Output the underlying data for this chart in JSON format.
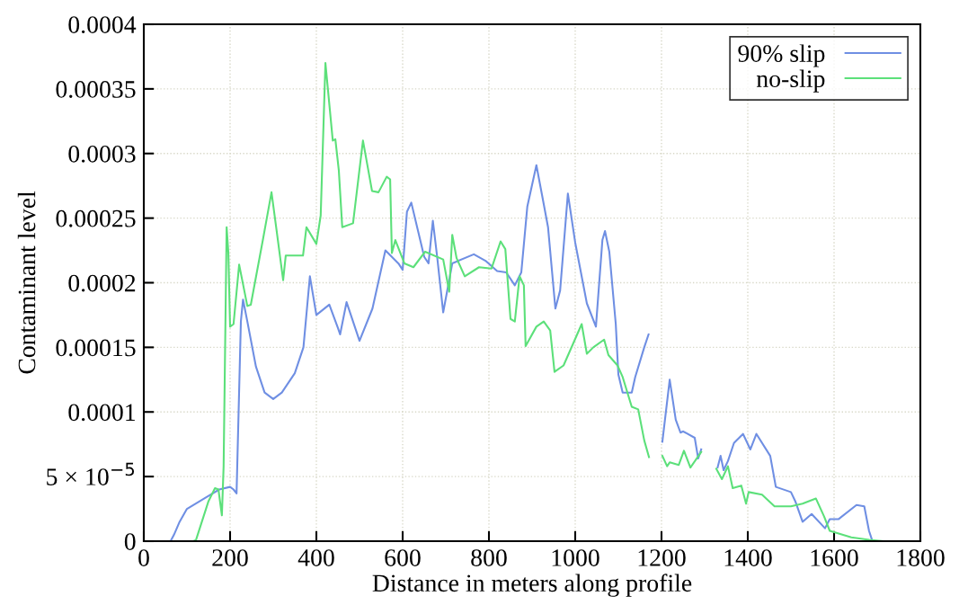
{
  "chart_data": {
    "type": "line",
    "xlabel": "Distance in meters along profile",
    "ylabel": "Contaminant level",
    "xlim": [
      0,
      1800
    ],
    "xticks": [
      0,
      200,
      400,
      600,
      800,
      1000,
      1200,
      1400,
      1600,
      1800
    ],
    "ylim": [
      0,
      0.0004
    ],
    "yticks": [
      0,
      {
        "value": 5e-05,
        "label": "5 × 10$^{−5}$"
      },
      0.0001,
      0.00015,
      0.0002,
      0.00025,
      0.0003,
      0.00035,
      0.0004
    ],
    "grid": true,
    "legend": "top right",
    "line_style": "solid",
    "marker": "none",
    "series": [
      {
        "name": "90% slip",
        "color": "#6f8fe3",
        "x": [
          0,
          62,
          70,
          83,
          100,
          125,
          150,
          175,
          200,
          208,
          215,
          225,
          230,
          240,
          260,
          280,
          300,
          320,
          350,
          370,
          385,
          400,
          430,
          450,
          455,
          470,
          500,
          530,
          560,
          590,
          600,
          610,
          620,
          650,
          660,
          670,
          680,
          694,
          715,
          765,
          792,
          819,
          840,
          860,
          875,
          889,
          910,
          923,
          937,
          954,
          965,
          983,
          1000,
          1027,
          1048,
          1063,
          1069,
          1079,
          1094,
          1100,
          1110,
          1131,
          1139,
          1160,
          1170,
          1185,
          1202,
          1219,
          1233,
          1244,
          1250,
          1277,
          1285,
          1292,
          1310,
          1330,
          1337,
          1344,
          1354,
          1368,
          1389,
          1406,
          1420,
          1452,
          1465,
          1500,
          1510,
          1527,
          1548,
          1579,
          1590,
          1610,
          1652,
          1670,
          1681,
          1688
        ],
        "values": [
          0,
          0,
          5e-06,
          1.5e-05,
          2.5e-05,
          3e-05,
          3.5e-05,
          4e-05,
          4.2e-05,
          4e-05,
          3.7e-05,
          0.00017,
          0.000187,
          0.00017,
          0.000135,
          0.000115,
          0.00011,
          0.000115,
          0.00013,
          0.00015,
          0.000205,
          0.000175,
          0.000183,
          0.000165,
          0.00016,
          0.000185,
          0.000155,
          0.00018,
          0.000225,
          0.000215,
          0.00021,
          0.000255,
          0.000262,
          0.00022,
          0.000215,
          0.000248,
          0.00022,
          0.000177,
          0.000215,
          0.000222,
          0.000217,
          0.000209,
          0.000208,
          0.000198,
          0.000208,
          0.000259,
          0.000291,
          0.000268,
          0.000243,
          0.00018,
          0.000194,
          0.000269,
          0.000231,
          0.000184,
          0.000166,
          0.000233,
          0.00024,
          0.000224,
          0.000168,
          0.000129,
          0.000115,
          0.000115,
          0.000127,
          0.00015,
          0.00016,
          null,
          7.7e-05,
          0.000125,
          9.4e-05,
          8.4e-05,
          8.5e-05,
          8e-05,
          6.4e-05,
          7.1e-05,
          null,
          5.7e-05,
          6.6e-05,
          5.5e-05,
          6.2e-05,
          7.6e-05,
          8.3e-05,
          7.1e-05,
          8.3e-05,
          6.6e-05,
          4.2e-05,
          3.8e-05,
          3.1e-05,
          1.5e-05,
          2.1e-05,
          1e-05,
          1.7e-05,
          1.7e-05,
          2.8e-05,
          2.7e-05,
          8e-06,
          1e-06
        ]
      },
      {
        "name": "no-slip",
        "color": "#5ce07a",
        "x": [
          0,
          115,
          121,
          150,
          165,
          173,
          181,
          185,
          192,
          196,
          200,
          208,
          221,
          240,
          248,
          277,
          296,
          306,
          323,
          329,
          369,
          377,
          400,
          410,
          421,
          438,
          444,
          452,
          460,
          485,
          508,
          529,
          544,
          563,
          571,
          575,
          583,
          604,
          625,
          652,
          694,
          708,
          715,
          725,
          744,
          777,
          806,
          827,
          838,
          850,
          860,
          871,
          881,
          885,
          910,
          927,
          942,
          952,
          973,
          1015,
          1027,
          1042,
          1067,
          1077,
          1098,
          1110,
          1131,
          1146,
          1160,
          1171,
          1185,
          1202,
          1213,
          1219,
          1240,
          1252,
          1267,
          1292,
          1310,
          1327,
          1340,
          1354,
          1365,
          1385,
          1396,
          1402,
          1433,
          1462,
          1500,
          1527,
          1558,
          1577,
          1590,
          1640,
          1681,
          1713
        ],
        "values": [
          0,
          0,
          1e-06,
          3.1e-05,
          4.1e-05,
          4e-05,
          2e-05,
          5.8e-05,
          0.000243,
          0.000223,
          0.000166,
          0.000168,
          0.000214,
          0.000182,
          0.000183,
          0.000235,
          0.00027,
          0.000245,
          0.000202,
          0.000221,
          0.000221,
          0.000243,
          0.00023,
          0.000252,
          0.00037,
          0.00031,
          0.000311,
          0.000287,
          0.000243,
          0.000246,
          0.00031,
          0.000271,
          0.00027,
          0.000282,
          0.00028,
          0.000223,
          0.000233,
          0.000215,
          0.000212,
          0.000224,
          0.000218,
          0.000193,
          0.000237,
          0.000219,
          0.000205,
          0.000212,
          0.000211,
          0.000232,
          0.000226,
          0.000172,
          0.00017,
          0.000205,
          0.000198,
          0.000151,
          0.000166,
          0.00017,
          0.000163,
          0.000131,
          0.000136,
          0.000168,
          0.000145,
          0.00015,
          0.000156,
          0.000144,
          0.000136,
          0.000127,
          0.000104,
          0.000102,
          7.8e-05,
          6.5e-05,
          null,
          6.6e-05,
          5.8e-05,
          6.1e-05,
          5.9e-05,
          7e-05,
          5.7e-05,
          6.9e-05,
          null,
          5.6e-05,
          4.8e-05,
          5.8e-05,
          4.1e-05,
          4.3e-05,
          2.9e-05,
          3.8e-05,
          3.6e-05,
          2.7e-05,
          2.7e-05,
          2.9e-05,
          3.3e-05,
          1.9e-05,
          8e-06,
          3e-06,
          1e-06,
          0
        ]
      }
    ]
  }
}
